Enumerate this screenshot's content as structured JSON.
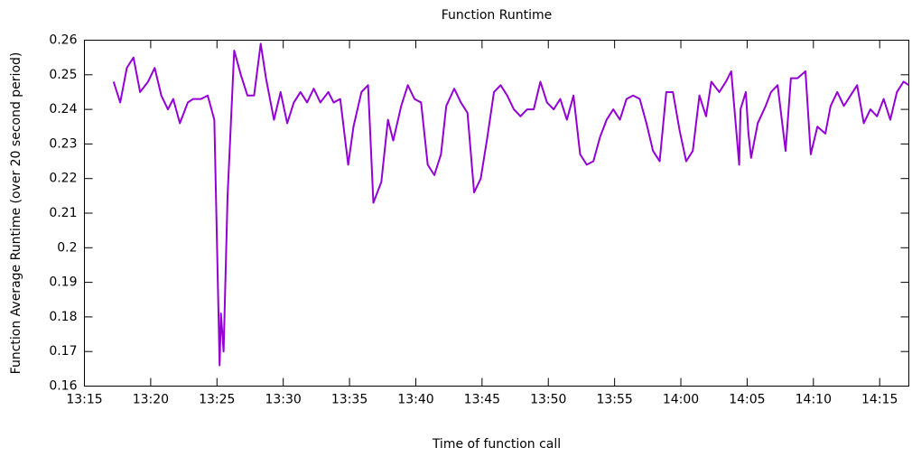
{
  "chart_data": {
    "type": "line",
    "title": "Function Runtime",
    "x_label": "Time of function call",
    "y_label": "Function Average Runtime (over 20 second period)",
    "x": [
      797.2,
      797.7,
      798.2,
      798.7,
      799.2,
      799.8,
      800.3,
      800.8,
      801.3,
      801.7,
      802.2,
      802.8,
      803.2,
      803.8,
      804.3,
      804.8,
      805.2,
      805.3,
      805.5,
      805.8,
      806.3,
      806.8,
      807.3,
      807.8,
      808.3,
      808.7,
      809.3,
      809.8,
      810.3,
      810.8,
      811.3,
      811.8,
      812.3,
      812.8,
      813.4,
      813.8,
      814.3,
      814.9,
      815.3,
      815.9,
      816.4,
      816.8,
      817.4,
      817.9,
      818.3,
      818.9,
      819.4,
      819.9,
      820.4,
      820.9,
      821.4,
      821.9,
      822.3,
      822.9,
      823.4,
      823.9,
      824.4,
      824.9,
      825.4,
      825.9,
      826.4,
      826.9,
      827.4,
      827.9,
      828.4,
      828.9,
      829.4,
      829.9,
      830.4,
      830.9,
      831.4,
      831.9,
      832.4,
      832.9,
      833.4,
      833.9,
      834.4,
      834.9,
      835.4,
      835.9,
      836.4,
      836.9,
      837.4,
      837.9,
      838.4,
      838.9,
      839.4,
      839.9,
      840.4,
      840.9,
      841.4,
      841.9,
      842.3,
      842.9,
      843.4,
      843.8,
      844.4,
      844.5,
      844.9,
      845.1,
      845.3,
      845.8,
      846.4,
      846.8,
      847.3,
      847.9,
      848.3,
      848.8,
      849.4,
      849.8,
      850.3,
      850.9,
      851.3,
      851.8,
      852.3,
      852.8,
      853.3,
      853.8,
      854.3,
      854.8,
      855.3,
      855.8,
      856.3,
      856.8,
      857.2
    ],
    "series": [
      {
        "color": "#9400d3",
        "values": [
          0.248,
          0.242,
          0.252,
          0.255,
          0.245,
          0.248,
          0.252,
          0.244,
          0.24,
          0.243,
          0.236,
          0.242,
          0.243,
          0.243,
          0.244,
          0.237,
          0.166,
          0.181,
          0.17,
          0.215,
          0.257,
          0.25,
          0.244,
          0.244,
          0.259,
          0.249,
          0.237,
          0.245,
          0.236,
          0.242,
          0.245,
          0.242,
          0.246,
          0.242,
          0.245,
          0.242,
          0.243,
          0.224,
          0.235,
          0.245,
          0.247,
          0.213,
          0.219,
          0.237,
          0.231,
          0.241,
          0.247,
          0.243,
          0.242,
          0.224,
          0.221,
          0.227,
          0.241,
          0.246,
          0.242,
          0.239,
          0.216,
          0.22,
          0.232,
          0.245,
          0.247,
          0.244,
          0.24,
          0.238,
          0.24,
          0.24,
          0.248,
          0.242,
          0.24,
          0.243,
          0.237,
          0.244,
          0.227,
          0.224,
          0.225,
          0.232,
          0.237,
          0.24,
          0.237,
          0.243,
          0.244,
          0.243,
          0.236,
          0.228,
          0.225,
          0.245,
          0.245,
          0.234,
          0.225,
          0.228,
          0.244,
          0.238,
          0.248,
          0.245,
          0.248,
          0.251,
          0.224,
          0.24,
          0.245,
          0.233,
          0.226,
          0.236,
          0.241,
          0.245,
          0.247,
          0.228,
          0.249,
          0.249,
          0.251,
          0.227,
          0.235,
          0.233,
          0.241,
          0.245,
          0.241,
          0.244,
          0.247,
          0.236,
          0.24,
          0.238,
          0.243,
          0.237,
          0.245,
          0.248,
          0.247
        ]
      }
    ],
    "xlim": [
      795,
      857.2
    ],
    "xticks": [
      {
        "value": 795,
        "label": "13:15"
      },
      {
        "value": 800,
        "label": "13:20"
      },
      {
        "value": 805,
        "label": "13:25"
      },
      {
        "value": 810,
        "label": "13:30"
      },
      {
        "value": 815,
        "label": "13:35"
      },
      {
        "value": 820,
        "label": "13:40"
      },
      {
        "value": 825,
        "label": "13:45"
      },
      {
        "value": 830,
        "label": "13:50"
      },
      {
        "value": 835,
        "label": "13:55"
      },
      {
        "value": 840,
        "label": "14:00"
      },
      {
        "value": 845,
        "label": "14:05"
      },
      {
        "value": 850,
        "label": "14:10"
      },
      {
        "value": 855,
        "label": "14:15"
      }
    ],
    "ylim": [
      0.16,
      0.26
    ],
    "yticks": [
      0.16,
      0.17,
      0.18,
      0.19,
      0.2,
      0.21,
      0.22,
      0.23,
      0.24,
      0.25,
      0.26
    ],
    "grid": false
  }
}
